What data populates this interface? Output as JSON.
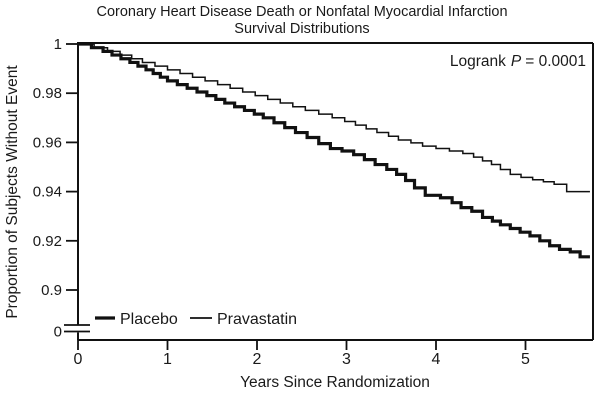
{
  "title": {
    "line1": "Coronary Heart Disease Death or Nonfatal Myocardial Infarction",
    "line2": "Survival Distributions"
  },
  "annotation": {
    "text_before": "Logrank",
    "stat": "P",
    "text_after": "= 0.0001"
  },
  "axes": {
    "x": {
      "label": "Years Since Randomization"
    },
    "y": {
      "label": "Proportion of Subjects Without Event",
      "break_label": "0"
    }
  },
  "legend": [
    {
      "label": "Placebo"
    },
    {
      "label": "Pravastatin"
    }
  ],
  "chart_data": {
    "type": "line",
    "variant": "kaplan-meier-step-survival",
    "title": "Coronary Heart Disease Death or Nonfatal Myocardial Infarction Survival Distributions",
    "xlabel": "Years Since Randomization",
    "ylabel": "Proportion of Subjects Without Event",
    "xlim": [
      0,
      5.75
    ],
    "ylim": [
      0.9,
      1.0
    ],
    "y_axis_break_to_zero": true,
    "x_ticks": [
      0,
      1,
      2,
      3,
      4,
      5
    ],
    "y_ticks": [
      1,
      0.98,
      0.96,
      0.94,
      0.92,
      0.9
    ],
    "annotation": "Logrank P = 0.0001",
    "legend_position": "inside-bottom-left",
    "grid": false,
    "series": [
      {
        "name": "Placebo",
        "line": "thick",
        "points": [
          [
            0.0,
            1.0
          ],
          [
            0.15,
            0.9985
          ],
          [
            0.28,
            0.997
          ],
          [
            0.38,
            0.9955
          ],
          [
            0.48,
            0.994
          ],
          [
            0.58,
            0.9925
          ],
          [
            0.67,
            0.991
          ],
          [
            0.76,
            0.9895
          ],
          [
            0.84,
            0.988
          ],
          [
            0.92,
            0.9865
          ],
          [
            1.0,
            0.985
          ],
          [
            1.11,
            0.9835
          ],
          [
            1.22,
            0.982
          ],
          [
            1.33,
            0.9805
          ],
          [
            1.44,
            0.979
          ],
          [
            1.54,
            0.9775
          ],
          [
            1.64,
            0.976
          ],
          [
            1.75,
            0.9745
          ],
          [
            1.86,
            0.973
          ],
          [
            1.97,
            0.9715
          ],
          [
            2.07,
            0.97
          ],
          [
            2.19,
            0.968
          ],
          [
            2.31,
            0.966
          ],
          [
            2.43,
            0.964
          ],
          [
            2.56,
            0.962
          ],
          [
            2.69,
            0.9595
          ],
          [
            2.82,
            0.9575
          ],
          [
            2.95,
            0.9565
          ],
          [
            3.08,
            0.955
          ],
          [
            3.2,
            0.953
          ],
          [
            3.32,
            0.951
          ],
          [
            3.45,
            0.949
          ],
          [
            3.56,
            0.947
          ],
          [
            3.66,
            0.9445
          ],
          [
            3.76,
            0.9415
          ],
          [
            3.88,
            0.9385
          ],
          [
            4.05,
            0.9375
          ],
          [
            4.18,
            0.9355
          ],
          [
            4.28,
            0.9335
          ],
          [
            4.4,
            0.932
          ],
          [
            4.52,
            0.9295
          ],
          [
            4.63,
            0.928
          ],
          [
            4.72,
            0.9265
          ],
          [
            4.83,
            0.925
          ],
          [
            4.94,
            0.9235
          ],
          [
            5.05,
            0.922
          ],
          [
            5.16,
            0.92
          ],
          [
            5.27,
            0.918
          ],
          [
            5.38,
            0.9165
          ],
          [
            5.5,
            0.9155
          ],
          [
            5.61,
            0.9135
          ],
          [
            5.72,
            0.9135
          ]
        ]
      },
      {
        "name": "Pravastatin",
        "line": "thin",
        "points": [
          [
            0.0,
            1.0
          ],
          [
            0.18,
            0.9985
          ],
          [
            0.33,
            0.997
          ],
          [
            0.47,
            0.9955
          ],
          [
            0.6,
            0.994
          ],
          [
            0.72,
            0.9925
          ],
          [
            0.86,
            0.991
          ],
          [
            1.0,
            0.9895
          ],
          [
            1.14,
            0.988
          ],
          [
            1.28,
            0.9865
          ],
          [
            1.42,
            0.985
          ],
          [
            1.56,
            0.9835
          ],
          [
            1.7,
            0.982
          ],
          [
            1.84,
            0.9805
          ],
          [
            1.98,
            0.979
          ],
          [
            2.12,
            0.9775
          ],
          [
            2.26,
            0.976
          ],
          [
            2.4,
            0.9745
          ],
          [
            2.54,
            0.973
          ],
          [
            2.69,
            0.9715
          ],
          [
            2.84,
            0.97
          ],
          [
            2.98,
            0.9685
          ],
          [
            3.1,
            0.967
          ],
          [
            3.22,
            0.9655
          ],
          [
            3.34,
            0.964
          ],
          [
            3.47,
            0.9625
          ],
          [
            3.58,
            0.961
          ],
          [
            3.72,
            0.9598
          ],
          [
            3.85,
            0.9585
          ],
          [
            4.0,
            0.9575
          ],
          [
            4.15,
            0.9565
          ],
          [
            4.3,
            0.9555
          ],
          [
            4.42,
            0.954
          ],
          [
            4.52,
            0.9525
          ],
          [
            4.62,
            0.951
          ],
          [
            4.72,
            0.949
          ],
          [
            4.83,
            0.947
          ],
          [
            4.95,
            0.9458
          ],
          [
            5.08,
            0.9448
          ],
          [
            5.2,
            0.944
          ],
          [
            5.32,
            0.943
          ],
          [
            5.46,
            0.94
          ],
          [
            5.72,
            0.94
          ]
        ]
      }
    ]
  }
}
